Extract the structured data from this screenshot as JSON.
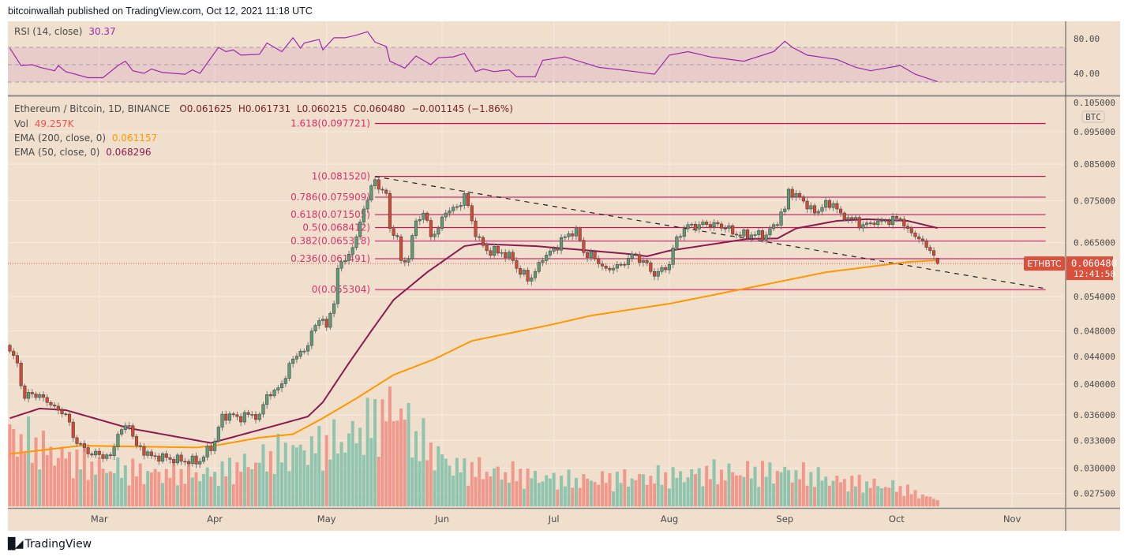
{
  "header": {
    "published": "bitcoinwallah published on TradingView.com, Oct 12, 2021 11:18 UTC"
  },
  "rsi_legend": {
    "label": "RSI (14, close)",
    "value": "30.37"
  },
  "legend": {
    "symbol": "Ethereum / Bitcoin, 1D, BINANCE",
    "open": "O0.061625",
    "high": "H0.061731",
    "low": "L0.060215",
    "close": "C0.060480",
    "change": "−0.001145 (−1.86%)",
    "vol_label": "Vol",
    "vol_value": "49.257K",
    "ema200_label": "EMA (200, close, 0)",
    "ema200_value": "0.061157",
    "ema50_label": "EMA (50, close, 0)",
    "ema50_value": "0.068296"
  },
  "price_axis": {
    "currency": "BTC",
    "scale": "log",
    "ticks": [
      "0.105000",
      "0.095000",
      "0.085000",
      "0.075000",
      "0.065000",
      "0.054000",
      "0.048000",
      "0.044000",
      "0.040000",
      "0.036000",
      "0.033000",
      "0.030000",
      "0.027500"
    ],
    "last_price_symbol": "ETHBTC",
    "last_price": "0.060480",
    "countdown": "12:41:50"
  },
  "rsi_axis": {
    "ticks": [
      "80.00",
      "40.00"
    ]
  },
  "time_axis": {
    "labels": [
      {
        "label": "Mar",
        "date": "2021-03-01"
      },
      {
        "label": "Apr",
        "date": "2021-04-01"
      },
      {
        "label": "May",
        "date": "2021-05-01"
      },
      {
        "label": "Jun",
        "date": "2021-06-01"
      },
      {
        "label": "Jul",
        "date": "2021-07-01"
      },
      {
        "label": "Aug",
        "date": "2021-08-01"
      },
      {
        "label": "Sep",
        "date": "2021-09-01"
      },
      {
        "label": "Oct",
        "date": "2021-10-01"
      },
      {
        "label": "Nov",
        "date": "2021-11-01"
      }
    ]
  },
  "colors": {
    "background": "#f1dfcd",
    "up": "#5d9c76",
    "down": "#d24a33",
    "vol_up": "#8fc4ae",
    "vol_down": "#f0988b",
    "ema200": "#ff9800",
    "ema50": "#8b1a4f",
    "rsi": "#9c27b0",
    "fib": "#d6336c",
    "last_price": "#d9503c"
  },
  "logo": {
    "text": "TradingView"
  },
  "chart_data": {
    "type": "candlestick",
    "title": "Ethereum / Bitcoin, 1D, BINANCE",
    "y_scale": "log",
    "ylim": [
      0.0262,
      0.108
    ],
    "xlim": [
      "2021-02-05",
      "2021-11-14"
    ],
    "grid": true,
    "last_candle": {
      "date": "2021-10-12",
      "open": 0.061625,
      "high": 0.061731,
      "low": 0.060215,
      "close": 0.06048
    },
    "closes": [
      [
        "2021-02-05",
        0.0448
      ],
      [
        "2021-02-07",
        0.043
      ],
      [
        "2021-02-09",
        0.0381
      ],
      [
        "2021-02-10",
        0.0389
      ],
      [
        "2021-02-13",
        0.0386
      ],
      [
        "2021-02-17",
        0.0371
      ],
      [
        "2021-02-20",
        0.0361
      ],
      [
        "2021-02-22",
        0.0333
      ],
      [
        "2021-02-26",
        0.0315
      ],
      [
        "2021-03-04",
        0.0313
      ],
      [
        "2021-03-06",
        0.0337
      ],
      [
        "2021-03-09",
        0.0347
      ],
      [
        "2021-03-11",
        0.0324
      ],
      [
        "2021-03-15",
        0.0313
      ],
      [
        "2021-03-19",
        0.0311
      ],
      [
        "2021-03-24",
        0.0307
      ],
      [
        "2021-03-28",
        0.0307
      ],
      [
        "2021-04-01",
        0.0329
      ],
      [
        "2021-04-03",
        0.0361
      ],
      [
        "2021-04-07",
        0.0358
      ],
      [
        "2021-04-13",
        0.0361
      ],
      [
        "2021-04-15",
        0.0386
      ],
      [
        "2021-04-17",
        0.0392
      ],
      [
        "2021-04-20",
        0.0408
      ],
      [
        "2021-04-22",
        0.0436
      ],
      [
        "2021-04-24",
        0.0448
      ],
      [
        "2021-04-25",
        0.0448
      ],
      [
        "2021-04-27",
        0.048
      ],
      [
        "2021-04-30",
        0.05
      ],
      [
        "2021-05-01",
        0.0486
      ],
      [
        "2021-05-03",
        0.0527
      ],
      [
        "2021-05-04",
        0.0595
      ],
      [
        "2021-05-06",
        0.0611
      ],
      [
        "2021-05-09",
        0.0663
      ],
      [
        "2021-05-11",
        0.0729
      ],
      [
        "2021-05-14",
        0.0806
      ],
      [
        "2021-05-15",
        0.078
      ],
      [
        "2021-05-17",
        0.0769
      ],
      [
        "2021-05-18",
        0.0682
      ],
      [
        "2021-05-20",
        0.0663
      ],
      [
        "2021-05-21",
        0.0611
      ],
      [
        "2021-05-23",
        0.0615
      ],
      [
        "2021-05-25",
        0.07
      ],
      [
        "2021-05-27",
        0.0719
      ],
      [
        "2021-05-29",
        0.0663
      ],
      [
        "2021-05-31",
        0.0682
      ],
      [
        "2021-06-02",
        0.0719
      ],
      [
        "2021-06-05",
        0.0735
      ],
      [
        "2021-06-07",
        0.0769
      ],
      [
        "2021-06-09",
        0.07
      ],
      [
        "2021-06-10",
        0.0663
      ],
      [
        "2021-06-13",
        0.0632
      ],
      [
        "2021-06-17",
        0.0628
      ],
      [
        "2021-06-20",
        0.0611
      ],
      [
        "2021-06-22",
        0.0583
      ],
      [
        "2021-06-25",
        0.0576
      ],
      [
        "2021-06-28",
        0.0611
      ],
      [
        "2021-07-01",
        0.0637
      ],
      [
        "2021-07-04",
        0.0663
      ],
      [
        "2021-07-07",
        0.0682
      ],
      [
        "2021-07-09",
        0.0628
      ],
      [
        "2021-07-12",
        0.0615
      ],
      [
        "2021-07-15",
        0.0595
      ],
      [
        "2021-07-19",
        0.0603
      ],
      [
        "2021-07-22",
        0.0625
      ],
      [
        "2021-07-25",
        0.0611
      ],
      [
        "2021-07-28",
        0.0579
      ],
      [
        "2021-08-01",
        0.0603
      ],
      [
        "2021-08-03",
        0.0663
      ],
      [
        "2021-08-06",
        0.0691
      ],
      [
        "2021-08-09",
        0.0691
      ],
      [
        "2021-08-13",
        0.0696
      ],
      [
        "2021-08-16",
        0.0682
      ],
      [
        "2021-08-19",
        0.0667
      ],
      [
        "2021-08-23",
        0.0667
      ],
      [
        "2021-08-27",
        0.0667
      ],
      [
        "2021-08-29",
        0.0691
      ],
      [
        "2021-09-01",
        0.0729
      ],
      [
        "2021-09-02",
        0.078
      ],
      [
        "2021-09-04",
        0.0769
      ],
      [
        "2021-09-06",
        0.0749
      ],
      [
        "2021-09-07",
        0.0729
      ],
      [
        "2021-09-09",
        0.0719
      ],
      [
        "2021-09-11",
        0.0733
      ],
      [
        "2021-09-14",
        0.0743
      ],
      [
        "2021-09-16",
        0.0719
      ],
      [
        "2021-09-19",
        0.0704
      ],
      [
        "2021-09-22",
        0.0691
      ],
      [
        "2021-09-25",
        0.0691
      ],
      [
        "2021-09-28",
        0.07
      ],
      [
        "2021-10-02",
        0.0704
      ],
      [
        "2021-10-04",
        0.0682
      ],
      [
        "2021-10-06",
        0.0663
      ],
      [
        "2021-10-08",
        0.0654
      ],
      [
        "2021-10-10",
        0.0632
      ],
      [
        "2021-10-12",
        0.06048
      ]
    ],
    "ema200": [
      [
        "2021-02-05",
        0.0315
      ],
      [
        "2021-02-24",
        0.0324
      ],
      [
        "2021-03-27",
        0.0322
      ],
      [
        "2021-04-01",
        0.0324
      ],
      [
        "2021-04-13",
        0.0333
      ],
      [
        "2021-04-22",
        0.0337
      ],
      [
        "2021-04-30",
        0.0356
      ],
      [
        "2021-05-09",
        0.0381
      ],
      [
        "2021-05-19",
        0.0413
      ],
      [
        "2021-05-30",
        0.0436
      ],
      [
        "2021-06-09",
        0.0464
      ],
      [
        "2021-06-30",
        0.049
      ],
      [
        "2021-07-11",
        0.0506
      ],
      [
        "2021-08-01",
        0.0527
      ],
      [
        "2021-08-22",
        0.0556
      ],
      [
        "2021-09-12",
        0.0587
      ],
      [
        "2021-10-04",
        0.0608
      ],
      [
        "2021-10-12",
        0.061157
      ]
    ],
    "ema50": [
      [
        "2021-02-05",
        0.0356
      ],
      [
        "2021-02-13",
        0.0368
      ],
      [
        "2021-02-20",
        0.0366
      ],
      [
        "2021-03-09",
        0.0344
      ],
      [
        "2021-03-31",
        0.0327
      ],
      [
        "2021-04-13",
        0.0342
      ],
      [
        "2021-04-26",
        0.0358
      ],
      [
        "2021-04-30",
        0.0376
      ],
      [
        "2021-05-07",
        0.043
      ],
      [
        "2021-05-13",
        0.048
      ],
      [
        "2021-05-19",
        0.0534
      ],
      [
        "2021-05-28",
        0.0587
      ],
      [
        "2021-06-07",
        0.0642
      ],
      [
        "2021-06-11",
        0.0647
      ],
      [
        "2021-06-26",
        0.0642
      ],
      [
        "2021-07-11",
        0.0632
      ],
      [
        "2021-07-21",
        0.0625
      ],
      [
        "2021-07-26",
        0.062
      ],
      [
        "2021-08-01",
        0.0632
      ],
      [
        "2021-08-22",
        0.0658
      ],
      [
        "2021-08-30",
        0.0659
      ],
      [
        "2021-09-04",
        0.0682
      ],
      [
        "2021-09-15",
        0.07
      ],
      [
        "2021-09-23",
        0.0704
      ],
      [
        "2021-10-04",
        0.07
      ],
      [
        "2021-10-12",
        0.068296
      ]
    ],
    "volume_k": [
      [
        "2021-02-05",
        560
      ],
      [
        "2021-02-15",
        430
      ],
      [
        "2021-03-01",
        300
      ],
      [
        "2021-03-15",
        260
      ],
      [
        "2021-04-01",
        250
      ],
      [
        "2021-04-20",
        420
      ],
      [
        "2021-05-05",
        500
      ],
      [
        "2021-05-12",
        620
      ],
      [
        "2021-05-20",
        790
      ],
      [
        "2021-05-25",
        520
      ],
      [
        "2021-06-05",
        300
      ],
      [
        "2021-06-20",
        250
      ],
      [
        "2021-07-05",
        200
      ],
      [
        "2021-08-01",
        230
      ],
      [
        "2021-08-10",
        260
      ],
      [
        "2021-09-01",
        270
      ],
      [
        "2021-09-15",
        200
      ],
      [
        "2021-10-01",
        150
      ],
      [
        "2021-10-12",
        49.257
      ]
    ],
    "rsi": {
      "period": 14,
      "levels": [
        70,
        50,
        30
      ],
      "ylim": [
        20,
        90
      ],
      "values": [
        [
          "2021-02-05",
          69
        ],
        [
          "2021-02-08",
          49
        ],
        [
          "2021-02-11",
          50
        ],
        [
          "2021-02-13",
          47
        ],
        [
          "2021-02-17",
          43
        ],
        [
          "2021-02-18",
          49
        ],
        [
          "2021-02-20",
          42
        ],
        [
          "2021-02-26",
          35
        ],
        [
          "2021-03-02",
          35
        ],
        [
          "2021-03-06",
          49
        ],
        [
          "2021-03-08",
          54
        ],
        [
          "2021-03-10",
          43
        ],
        [
          "2021-03-13",
          40
        ],
        [
          "2021-03-15",
          45
        ],
        [
          "2021-03-18",
          41
        ],
        [
          "2021-03-24",
          39
        ],
        [
          "2021-03-26",
          44
        ],
        [
          "2021-03-28",
          40
        ],
        [
          "2021-04-02",
          70
        ],
        [
          "2021-04-04",
          65
        ],
        [
          "2021-04-06",
          67
        ],
        [
          "2021-04-08",
          61
        ],
        [
          "2021-04-13",
          62
        ],
        [
          "2021-04-15",
          75
        ],
        [
          "2021-04-19",
          65
        ],
        [
          "2021-04-22",
          81
        ],
        [
          "2021-04-24",
          69
        ],
        [
          "2021-04-25",
          75
        ],
        [
          "2021-04-29",
          79
        ],
        [
          "2021-04-30",
          67
        ],
        [
          "2021-05-03",
          81
        ],
        [
          "2021-05-06",
          81
        ],
        [
          "2021-05-09",
          84
        ],
        [
          "2021-05-12",
          88
        ],
        [
          "2021-05-14",
          76
        ],
        [
          "2021-05-17",
          71
        ],
        [
          "2021-05-18",
          54
        ],
        [
          "2021-05-22",
          46
        ],
        [
          "2021-05-25",
          60
        ],
        [
          "2021-05-29",
          50
        ],
        [
          "2021-05-31",
          58
        ],
        [
          "2021-06-04",
          59
        ],
        [
          "2021-06-07",
          63
        ],
        [
          "2021-06-10",
          42
        ],
        [
          "2021-06-12",
          45
        ],
        [
          "2021-06-15",
          42
        ],
        [
          "2021-06-19",
          44
        ],
        [
          "2021-06-21",
          36
        ],
        [
          "2021-06-26",
          36
        ],
        [
          "2021-06-28",
          55
        ],
        [
          "2021-07-04",
          59
        ],
        [
          "2021-07-13",
          47
        ],
        [
          "2021-07-21",
          43
        ],
        [
          "2021-07-28",
          39
        ],
        [
          "2021-08-01",
          61
        ],
        [
          "2021-08-06",
          65
        ],
        [
          "2021-08-12",
          59
        ],
        [
          "2021-08-21",
          54
        ],
        [
          "2021-08-29",
          65
        ],
        [
          "2021-09-01",
          77
        ],
        [
          "2021-09-03",
          70
        ],
        [
          "2021-09-07",
          61
        ],
        [
          "2021-09-15",
          56
        ],
        [
          "2021-09-20",
          47
        ],
        [
          "2021-09-24",
          43
        ],
        [
          "2021-10-02",
          49
        ],
        [
          "2021-10-06",
          39
        ],
        [
          "2021-10-12",
          30.37
        ]
      ]
    },
    "fibonacci": {
      "range": [
        "2021-05-14",
        "2021-11-10"
      ],
      "levels": [
        {
          "level": 1.618,
          "value": 0.097721,
          "label": "1.618(0.097721)"
        },
        {
          "level": 1,
          "value": 0.08152,
          "label": "1(0.081520)"
        },
        {
          "level": 0.786,
          "value": 0.075909,
          "label": "0.786(0.075909)"
        },
        {
          "level": 0.618,
          "value": 0.071505,
          "label": "0.618(0.071505)"
        },
        {
          "level": 0.5,
          "value": 0.068412,
          "label": "0.5(0.068412)"
        },
        {
          "level": 0.382,
          "value": 0.065318,
          "label": "0.382(0.065318)"
        },
        {
          "level": 0.236,
          "value": 0.061491,
          "label": "0.236(0.061491)"
        },
        {
          "level": 0,
          "value": 0.055304,
          "label": "0(0.055304)"
        }
      ]
    },
    "trendline": [
      [
        "2021-05-14",
        0.0815
      ],
      [
        "2021-11-10",
        0.0555
      ]
    ]
  }
}
